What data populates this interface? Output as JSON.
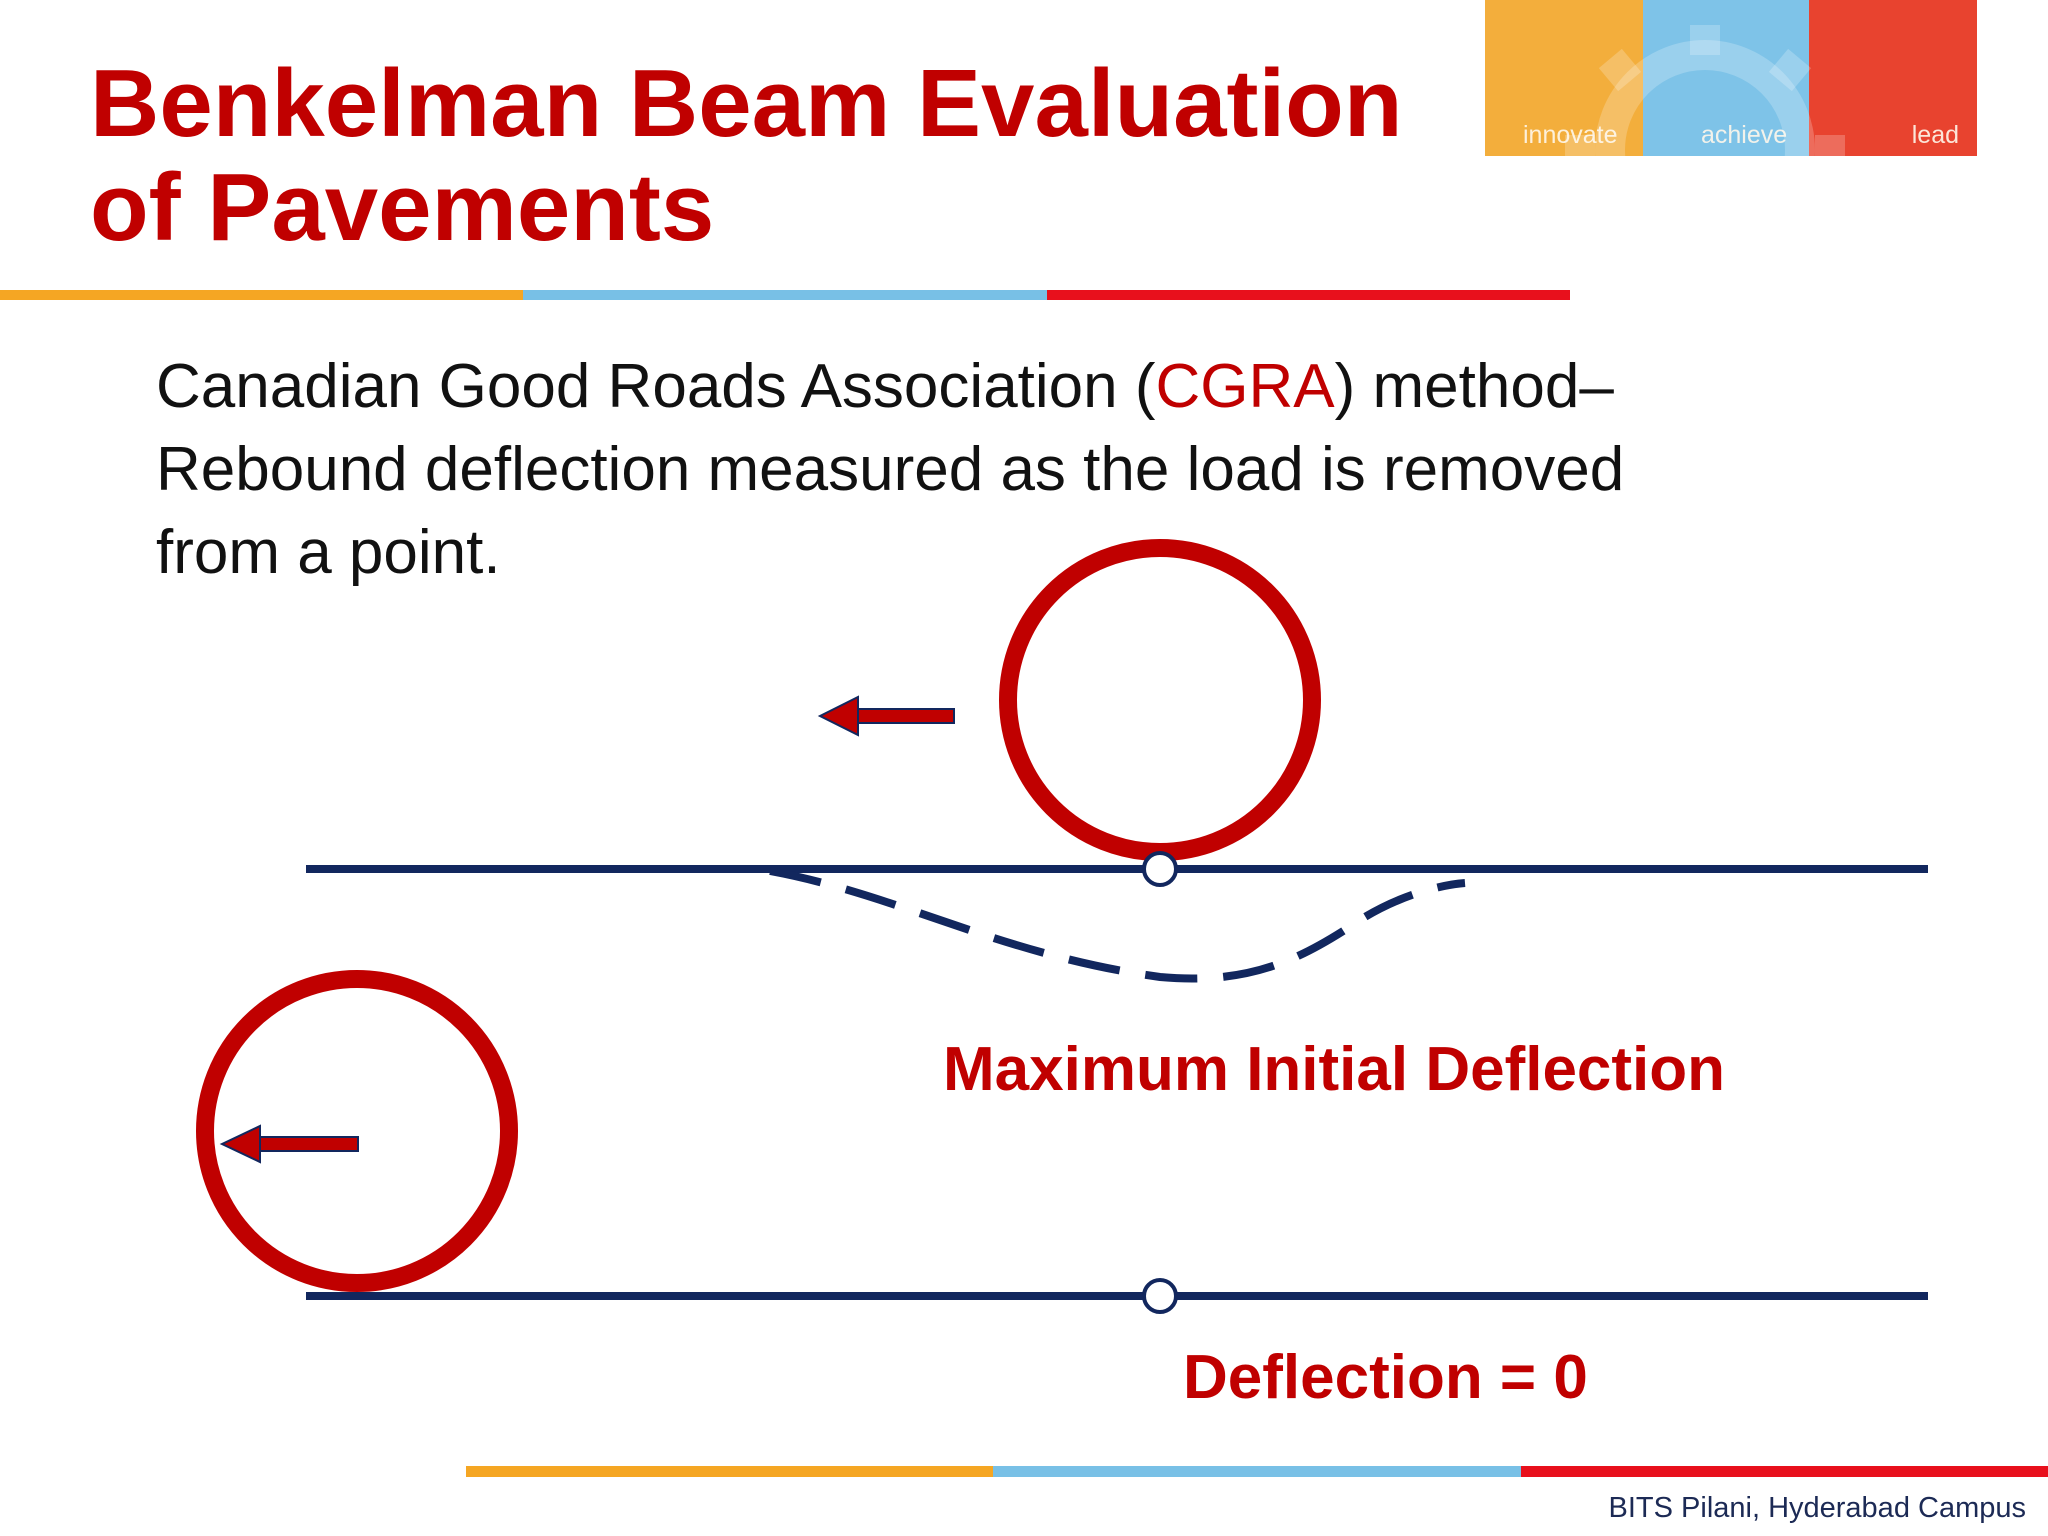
{
  "slide": {
    "title_line1": "Benkelman Beam Evaluation",
    "title_line2": "of Pavements"
  },
  "logo": {
    "innovate": "innovate",
    "achieve": "achieve",
    "lead": "lead",
    "colors": {
      "orange": "#f3ae3c",
      "blue": "#7ec3e8",
      "red": "#e8432f"
    }
  },
  "body": {
    "line1_pre": "Canadian Good Roads Association (",
    "line1_acronym": "CGRA",
    "line1_post": ") method–",
    "line2": "Rebound deflection measured as the load is removed",
    "line3": "from a point."
  },
  "diagram": {
    "label_max": "Maximum Initial Deflection",
    "label_zero": "Deflection = 0"
  },
  "footer": {
    "campus": "BITS Pilani, Hyderabad Campus"
  },
  "colors": {
    "title_red": "#c00000",
    "navy": "#12275e",
    "rule_orange": "#f5a623",
    "rule_blue": "#78c0e6",
    "rule_red": "#e8101c"
  }
}
